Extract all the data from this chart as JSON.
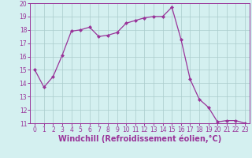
{
  "x": [
    0,
    1,
    2,
    3,
    4,
    5,
    6,
    7,
    8,
    9,
    10,
    11,
    12,
    13,
    14,
    15,
    16,
    17,
    18,
    19,
    20,
    21,
    22,
    23
  ],
  "y": [
    15.0,
    13.7,
    14.5,
    16.1,
    17.9,
    18.0,
    18.2,
    17.5,
    17.6,
    17.8,
    18.5,
    18.7,
    18.9,
    19.0,
    19.0,
    19.7,
    17.3,
    14.3,
    12.8,
    12.2,
    11.1,
    11.2,
    11.2,
    11.0
  ],
  "line_color": "#993399",
  "marker": "D",
  "markersize": 2.0,
  "linewidth": 0.9,
  "bg_color": "#d4f0f0",
  "grid_color": "#aacccc",
  "xlabel": "Windchill (Refroidissement éolien,°C)",
  "xlabel_color": "#993399",
  "ylim": [
    11,
    20
  ],
  "xlim": [
    -0.5,
    23.5
  ],
  "yticks": [
    11,
    12,
    13,
    14,
    15,
    16,
    17,
    18,
    19,
    20
  ],
  "xticks": [
    0,
    1,
    2,
    3,
    4,
    5,
    6,
    7,
    8,
    9,
    10,
    11,
    12,
    13,
    14,
    15,
    16,
    17,
    18,
    19,
    20,
    21,
    22,
    23
  ],
  "tick_label_fontsize": 5.5,
  "xlabel_fontsize": 7.0
}
